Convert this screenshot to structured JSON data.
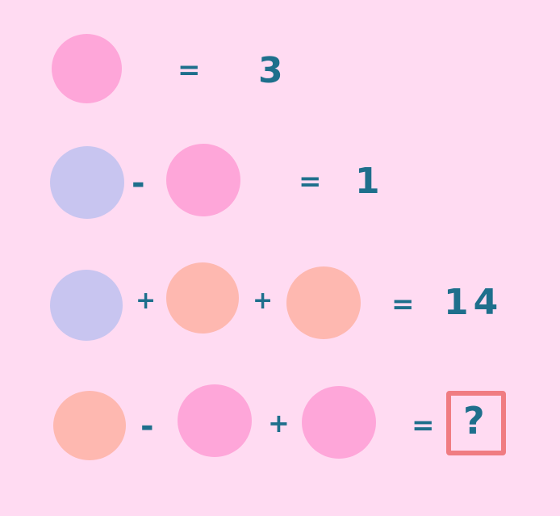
{
  "colors": {
    "background": "#FFDBF2",
    "pink": "#FEA6D9",
    "lavender": "#C8C5F0",
    "peach": "#FEB8B0",
    "ink": "#1E6F8C",
    "box": "#F07C82"
  },
  "rows": [
    {
      "shapes": [
        "pink-circle"
      ],
      "operators": [],
      "equals": "=",
      "result": "3"
    },
    {
      "shapes": [
        "lavender-circle",
        "pink-circle"
      ],
      "operators": [
        "-"
      ],
      "equals": "=",
      "result": "1"
    },
    {
      "shapes": [
        "lavender-circle",
        "peach-circle",
        "peach-circle"
      ],
      "operators": [
        "+",
        "+"
      ],
      "equals": "=",
      "result": "14"
    },
    {
      "shapes": [
        "peach-circle",
        "pink-circle",
        "pink-circle"
      ],
      "operators": [
        "-",
        "+"
      ],
      "equals": "=",
      "result": "?"
    }
  ]
}
